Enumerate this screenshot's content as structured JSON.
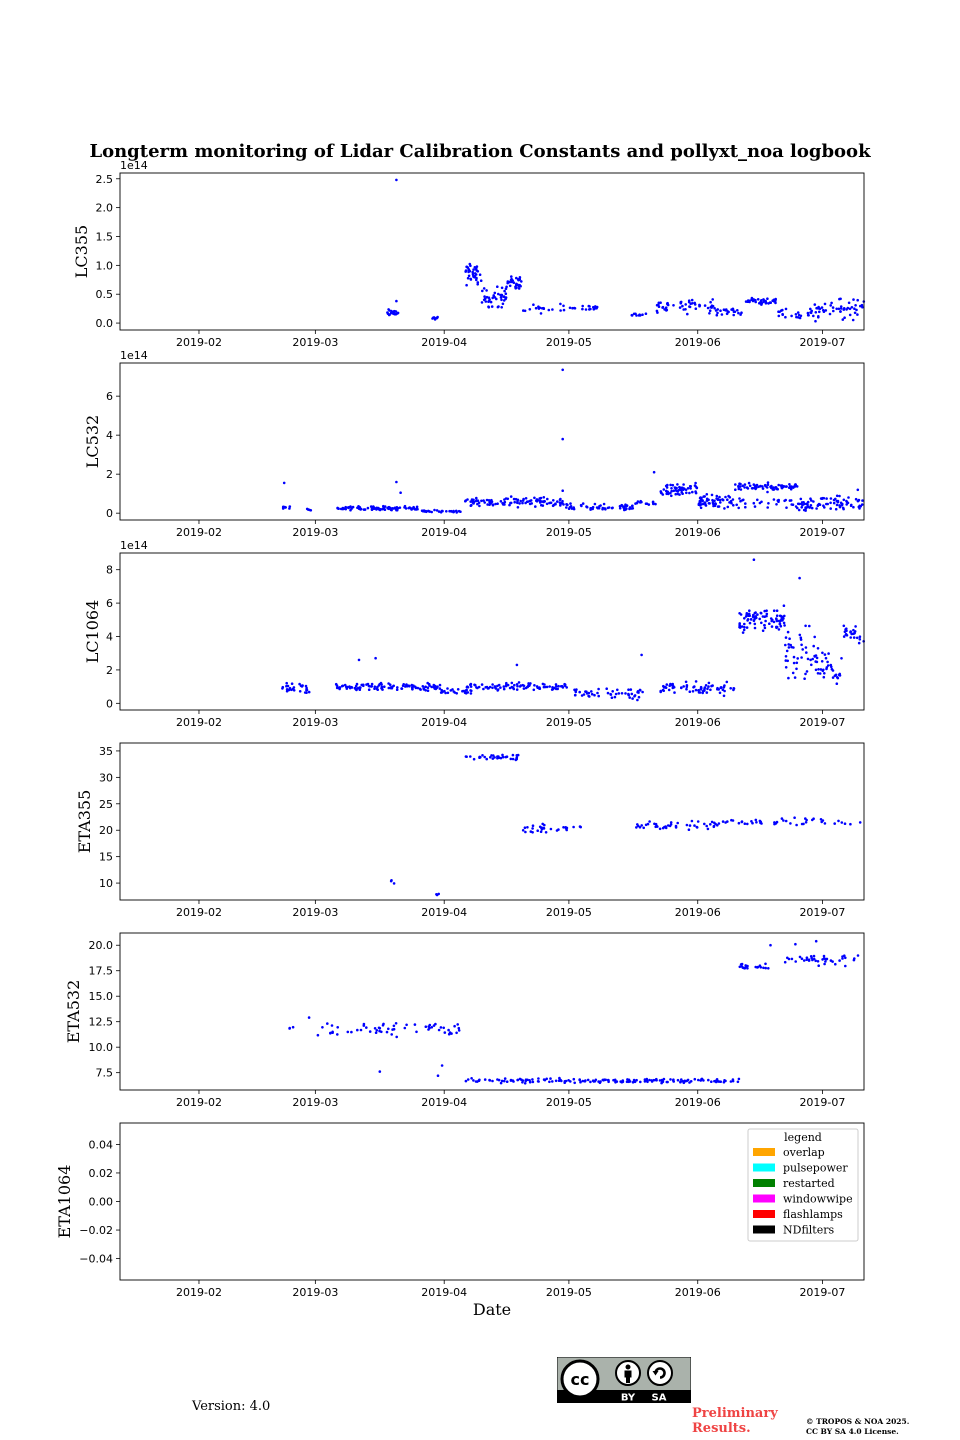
{
  "page": {
    "title": "Longterm monitoring of Lidar Calibration Constants and pollyxt_noa logbook",
    "version": "Version: 4.0",
    "preliminary_line1": "Preliminary",
    "preliminary_line2": "Results.",
    "copyright_line1": "© TROPOS & NOA 2025.",
    "copyright_line2": "CC BY SA 4.0 License.",
    "license_by": "BY",
    "license_sa": "SA",
    "point_color": "#0000ff"
  },
  "chart_data": [
    {
      "type": "scatter",
      "ylabel": "LC355",
      "exponent": "1e14",
      "xlabel": "",
      "x_range": [
        "2019-01-13",
        "2019-07-11"
      ],
      "ylim": [
        -0.12,
        2.6
      ],
      "yticks": [
        0,
        0.5,
        1.0,
        1.5,
        2.0,
        2.5
      ],
      "ytick_labels": [
        "0.0",
        "0.5",
        "1.0",
        "1.5",
        "2.0",
        "2.5"
      ],
      "xtick_labels": [
        "2019-02",
        "2019-03",
        "2019-04",
        "2019-05",
        "2019-06",
        "2019-07"
      ],
      "segments": [
        {
          "start": "2019-03-18",
          "end": "2019-03-21",
          "mean": 0.18,
          "spread": 0.05,
          "n": 22
        },
        {
          "start": "2019-03-29",
          "end": "2019-03-31",
          "mean": 0.08,
          "spread": 0.02,
          "n": 8
        },
        {
          "start": "2019-04-06",
          "end": "2019-04-10",
          "mean": 0.85,
          "spread": 0.15,
          "n": 40
        },
        {
          "start": "2019-04-10",
          "end": "2019-04-16",
          "mean": 0.45,
          "spread": 0.15,
          "n": 45
        },
        {
          "start": "2019-04-16",
          "end": "2019-04-20",
          "mean": 0.7,
          "spread": 0.1,
          "n": 30
        },
        {
          "start": "2019-04-20",
          "end": "2019-05-08",
          "mean": 0.25,
          "spread": 0.06,
          "n": 35
        },
        {
          "start": "2019-05-16",
          "end": "2019-05-20",
          "mean": 0.15,
          "spread": 0.05,
          "n": 10
        },
        {
          "start": "2019-05-22",
          "end": "2019-06-05",
          "mean": 0.3,
          "spread": 0.1,
          "n": 50
        },
        {
          "start": "2019-06-05",
          "end": "2019-06-12",
          "mean": 0.2,
          "spread": 0.06,
          "n": 25
        },
        {
          "start": "2019-06-12",
          "end": "2019-06-20",
          "mean": 0.38,
          "spread": 0.04,
          "n": 40
        },
        {
          "start": "2019-06-20",
          "end": "2019-07-02",
          "mean": 0.2,
          "spread": 0.12,
          "n": 40
        },
        {
          "start": "2019-07-02",
          "end": "2019-07-11",
          "mean": 0.25,
          "spread": 0.15,
          "n": 35
        }
      ],
      "outliers": [
        {
          "x": "2019-03-20",
          "y": 2.48
        },
        {
          "x": "2019-03-20",
          "y": 0.38
        }
      ]
    },
    {
      "type": "scatter",
      "ylabel": "LC532",
      "exponent": "1e14",
      "xlabel": "",
      "x_range": [
        "2019-01-13",
        "2019-07-11"
      ],
      "ylim": [
        -0.35,
        7.7
      ],
      "yticks": [
        0,
        2,
        4,
        6
      ],
      "ytick_labels": [
        "0",
        "2",
        "4",
        "6"
      ],
      "xtick_labels": [
        "2019-02",
        "2019-03",
        "2019-04",
        "2019-05",
        "2019-06",
        "2019-07"
      ],
      "segments": [
        {
          "start": "2019-02-21",
          "end": "2019-02-23",
          "mean": 0.3,
          "spread": 0.05,
          "n": 8
        },
        {
          "start": "2019-02-27",
          "end": "2019-02-28",
          "mean": 0.2,
          "spread": 0.1,
          "n": 4
        },
        {
          "start": "2019-03-06",
          "end": "2019-03-26",
          "mean": 0.25,
          "spread": 0.08,
          "n": 90
        },
        {
          "start": "2019-03-26",
          "end": "2019-04-05",
          "mean": 0.1,
          "spread": 0.05,
          "n": 30
        },
        {
          "start": "2019-04-06",
          "end": "2019-04-30",
          "mean": 0.55,
          "spread": 0.2,
          "n": 110
        },
        {
          "start": "2019-04-30",
          "end": "2019-05-17",
          "mean": 0.3,
          "spread": 0.15,
          "n": 60
        },
        {
          "start": "2019-05-17",
          "end": "2019-05-22",
          "mean": 0.5,
          "spread": 0.1,
          "n": 15
        },
        {
          "start": "2019-05-23",
          "end": "2019-06-01",
          "mean": 1.2,
          "spread": 0.3,
          "n": 60
        },
        {
          "start": "2019-06-01",
          "end": "2019-06-10",
          "mean": 0.6,
          "spread": 0.3,
          "n": 60
        },
        {
          "start": "2019-06-10",
          "end": "2019-06-25",
          "mean": 1.35,
          "spread": 0.15,
          "n": 70
        },
        {
          "start": "2019-06-10",
          "end": "2019-06-25",
          "mean": 0.5,
          "spread": 0.4,
          "n": 30
        },
        {
          "start": "2019-06-25",
          "end": "2019-07-11",
          "mean": 0.5,
          "spread": 0.3,
          "n": 80
        }
      ],
      "outliers": [
        {
          "x": "2019-02-21",
          "y": 1.55
        },
        {
          "x": "2019-03-20",
          "y": 1.6
        },
        {
          "x": "2019-03-21",
          "y": 1.05
        },
        {
          "x": "2019-04-29",
          "y": 7.35
        },
        {
          "x": "2019-04-29",
          "y": 3.8
        },
        {
          "x": "2019-04-29",
          "y": 1.15
        },
        {
          "x": "2019-05-21",
          "y": 2.1
        },
        {
          "x": "2019-07-09",
          "y": 1.2
        }
      ]
    },
    {
      "type": "scatter",
      "ylabel": "LC1064",
      "exponent": "1e14",
      "xlabel": "",
      "x_range": [
        "2019-01-13",
        "2019-07-11"
      ],
      "ylim": [
        -0.4,
        9.0
      ],
      "yticks": [
        0,
        2,
        4,
        6,
        8
      ],
      "ytick_labels": [
        "0",
        "2",
        "4",
        "6",
        "8"
      ],
      "xtick_labels": [
        "2019-02",
        "2019-03",
        "2019-04",
        "2019-05",
        "2019-06",
        "2019-07"
      ],
      "segments": [
        {
          "start": "2019-02-21",
          "end": "2019-02-28",
          "mean": 0.9,
          "spread": 0.25,
          "n": 30
        },
        {
          "start": "2019-03-06",
          "end": "2019-03-31",
          "mean": 1.0,
          "spread": 0.2,
          "n": 110
        },
        {
          "start": "2019-03-31",
          "end": "2019-04-08",
          "mean": 0.7,
          "spread": 0.15,
          "n": 25
        },
        {
          "start": "2019-04-06",
          "end": "2019-05-01",
          "mean": 1.0,
          "spread": 0.2,
          "n": 90
        },
        {
          "start": "2019-05-02",
          "end": "2019-05-20",
          "mean": 0.6,
          "spread": 0.3,
          "n": 50
        },
        {
          "start": "2019-05-23",
          "end": "2019-06-10",
          "mean": 0.9,
          "spread": 0.3,
          "n": 70
        },
        {
          "start": "2019-06-11",
          "end": "2019-06-22",
          "mean": 5.0,
          "spread": 0.6,
          "n": 90
        },
        {
          "start": "2019-06-22",
          "end": "2019-06-30",
          "mean": 3.0,
          "spread": 1.2,
          "n": 50
        },
        {
          "start": "2019-06-30",
          "end": "2019-07-06",
          "mean": 2.0,
          "spread": 0.8,
          "n": 30
        },
        {
          "start": "2019-07-06",
          "end": "2019-07-11",
          "mean": 4.1,
          "spread": 0.5,
          "n": 25
        }
      ],
      "outliers": [
        {
          "x": "2019-06-14",
          "y": 8.6
        },
        {
          "x": "2019-06-25",
          "y": 7.5
        },
        {
          "x": "2019-03-11",
          "y": 2.6
        },
        {
          "x": "2019-03-15",
          "y": 2.7
        },
        {
          "x": "2019-04-18",
          "y": 2.3
        },
        {
          "x": "2019-05-18",
          "y": 2.9
        }
      ]
    },
    {
      "type": "scatter",
      "ylabel": "ETA355",
      "exponent": "",
      "xlabel": "",
      "x_range": [
        "2019-01-13",
        "2019-07-11"
      ],
      "ylim": [
        6.8,
        36.5
      ],
      "yticks": [
        10,
        15,
        20,
        25,
        30,
        35
      ],
      "ytick_labels": [
        "10",
        "15",
        "20",
        "25",
        "30",
        "35"
      ],
      "xtick_labels": [
        "2019-02",
        "2019-03",
        "2019-04",
        "2019-05",
        "2019-06",
        "2019-07"
      ],
      "segments": [
        {
          "start": "2019-03-19",
          "end": "2019-03-20",
          "mean": 10.3,
          "spread": 0.4,
          "n": 3
        },
        {
          "start": "2019-03-30",
          "end": "2019-03-31",
          "mean": 8.0,
          "spread": 0.2,
          "n": 3
        },
        {
          "start": "2019-04-06",
          "end": "2019-04-20",
          "mean": 33.8,
          "spread": 0.5,
          "n": 35
        },
        {
          "start": "2019-04-20",
          "end": "2019-05-04",
          "mean": 20.3,
          "spread": 0.7,
          "n": 30
        },
        {
          "start": "2019-05-17",
          "end": "2019-06-07",
          "mean": 21.0,
          "spread": 0.6,
          "n": 45
        },
        {
          "start": "2019-06-07",
          "end": "2019-07-11",
          "mean": 21.7,
          "spread": 0.6,
          "n": 45
        }
      ],
      "outliers": []
    },
    {
      "type": "scatter",
      "ylabel": "ETA532",
      "exponent": "",
      "xlabel": "",
      "x_range": [
        "2019-01-13",
        "2019-07-11"
      ],
      "ylim": [
        5.8,
        21.2
      ],
      "yticks": [
        7.5,
        10.0,
        12.5,
        15.0,
        17.5,
        20.0
      ],
      "ytick_labels": [
        "7.5",
        "10.0",
        "12.5",
        "15.0",
        "17.5",
        "20.0"
      ],
      "xtick_labels": [
        "2019-02",
        "2019-03",
        "2019-04",
        "2019-05",
        "2019-06",
        "2019-07"
      ],
      "segments": [
        {
          "start": "2019-02-22",
          "end": "2019-02-24",
          "mean": 11.9,
          "spread": 0.1,
          "n": 3
        },
        {
          "start": "2019-03-01",
          "end": "2019-04-05",
          "mean": 11.8,
          "spread": 0.6,
          "n": 60
        },
        {
          "start": "2019-04-06",
          "end": "2019-06-11",
          "mean": 6.7,
          "spread": 0.18,
          "n": 170
        },
        {
          "start": "2019-06-11",
          "end": "2019-06-18",
          "mean": 17.9,
          "spread": 0.2,
          "n": 20
        },
        {
          "start": "2019-06-22",
          "end": "2019-07-11",
          "mean": 18.5,
          "spread": 0.5,
          "n": 40
        }
      ],
      "outliers": [
        {
          "x": "2019-02-27",
          "y": 12.9
        },
        {
          "x": "2019-03-16",
          "y": 7.6
        },
        {
          "x": "2019-03-30",
          "y": 7.2
        },
        {
          "x": "2019-03-31",
          "y": 8.2
        },
        {
          "x": "2019-06-18",
          "y": 20.0
        },
        {
          "x": "2019-06-24",
          "y": 20.1
        },
        {
          "x": "2019-06-29",
          "y": 20.4
        }
      ]
    },
    {
      "type": "scatter",
      "ylabel": "ETA1064",
      "exponent": "",
      "xlabel": "Date",
      "x_range": [
        "2019-01-13",
        "2019-07-11"
      ],
      "ylim": [
        -0.055,
        0.055
      ],
      "yticks": [
        -0.04,
        -0.02,
        0,
        0.02,
        0.04
      ],
      "ytick_labels": [
        "−0.04",
        "−0.02",
        "0.00",
        "0.02",
        "0.04"
      ],
      "xtick_labels": [
        "2019-02",
        "2019-03",
        "2019-04",
        "2019-05",
        "2019-06",
        "2019-07"
      ],
      "segments": [],
      "outliers": [],
      "legend": {
        "title": "legend",
        "position": "upper right",
        "entries": [
          {
            "label": "overlap",
            "color": "#ffa500"
          },
          {
            "label": "pulsepower",
            "color": "#00ffff"
          },
          {
            "label": "restarted",
            "color": "#008000"
          },
          {
            "label": "windowwipe",
            "color": "#ff00ff"
          },
          {
            "label": "flashlamps",
            "color": "#ff0000"
          },
          {
            "label": "NDfilters",
            "color": "#000000"
          }
        ]
      }
    }
  ]
}
